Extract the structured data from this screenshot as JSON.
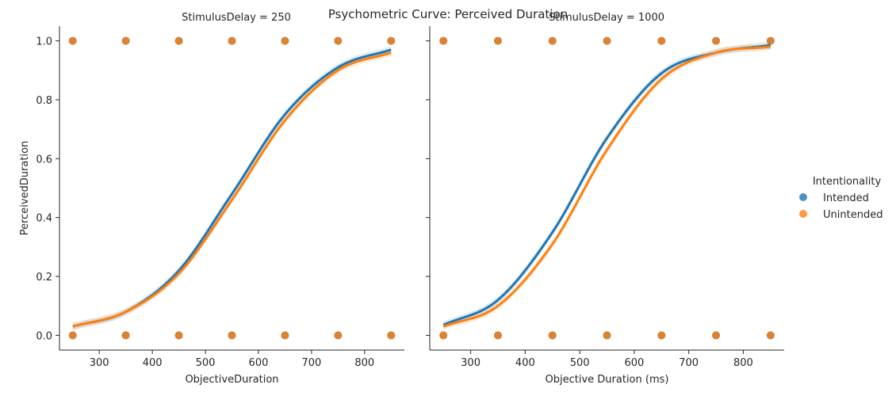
{
  "suptitle": "Psychometric Curve: Perceived Duration",
  "legend": {
    "title": "Intentionality",
    "placement": "right",
    "entries": [
      {
        "label": "Intended",
        "color": "#1f77b4"
      },
      {
        "label": "Unintended",
        "color": "#ff7f0e"
      }
    ]
  },
  "chart_data": [
    {
      "type": "scatter",
      "title": "StimulusDelay = 250",
      "xlabel": "ObjectiveDuration",
      "ylabel": "PerceivedDuration",
      "xlim": [
        225,
        875
      ],
      "ylim": [
        -0.05,
        1.05
      ],
      "xticks": [
        300,
        400,
        500,
        600,
        700,
        800
      ],
      "yticks": [
        0.0,
        0.2,
        0.4,
        0.6,
        0.8,
        1.0
      ],
      "ytick_labels": [
        "0.0",
        "0.2",
        "0.4",
        "0.6",
        "0.8",
        "1.0"
      ],
      "grid": false,
      "points_x": [
        250,
        350,
        450,
        550,
        650,
        750,
        850
      ],
      "points_y": [
        0,
        1
      ],
      "series": [
        {
          "name": "Intended",
          "color": "#1f77b4",
          "fit": {
            "type": "logistic",
            "x": [
              250,
              350,
              450,
              550,
              650,
              750,
              850
            ],
            "y": [
              0.03,
              0.08,
              0.22,
              0.48,
              0.75,
              0.91,
              0.97
            ]
          }
        },
        {
          "name": "Unintended",
          "color": "#ff7f0e",
          "fit": {
            "type": "logistic",
            "x": [
              250,
              350,
              450,
              550,
              650,
              750,
              850
            ],
            "y": [
              0.03,
              0.08,
              0.21,
              0.46,
              0.73,
              0.9,
              0.96
            ]
          }
        }
      ]
    },
    {
      "type": "scatter",
      "title": "StimulusDelay = 1000",
      "xlabel": "Objective Duration (ms)",
      "ylabel": "",
      "xlim": [
        225,
        875
      ],
      "ylim": [
        -0.05,
        1.05
      ],
      "xticks": [
        300,
        400,
        500,
        600,
        700,
        800
      ],
      "yticks": [
        0.0,
        0.2,
        0.4,
        0.6,
        0.8,
        1.0
      ],
      "grid": false,
      "points_x": [
        250,
        350,
        450,
        550,
        650,
        750,
        850
      ],
      "points_y": [
        0,
        1
      ],
      "series": [
        {
          "name": "Intended",
          "color": "#1f77b4",
          "fit": {
            "type": "logistic",
            "x": [
              250,
              350,
              450,
              550,
              650,
              750,
              850
            ],
            "y": [
              0.035,
              0.12,
              0.35,
              0.67,
              0.89,
              0.96,
              0.985
            ]
          }
        },
        {
          "name": "Unintended",
          "color": "#ff7f0e",
          "fit": {
            "type": "logistic",
            "x": [
              250,
              350,
              450,
              550,
              650,
              750,
              850
            ],
            "y": [
              0.03,
              0.1,
              0.31,
              0.63,
              0.87,
              0.96,
              0.98
            ]
          }
        }
      ]
    }
  ]
}
